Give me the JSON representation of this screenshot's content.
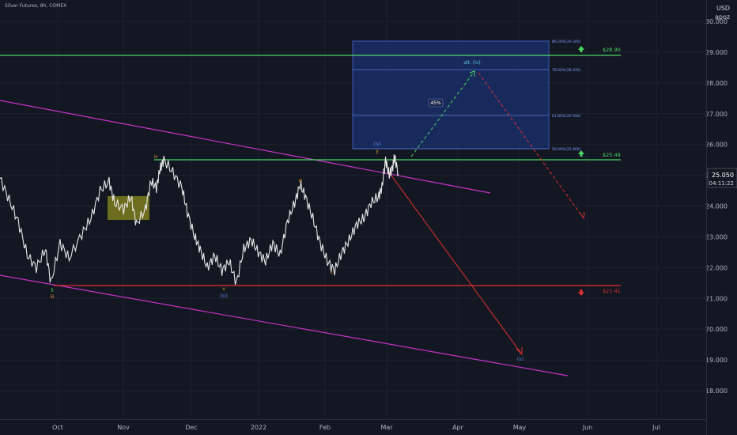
{
  "header": {
    "symbol": "Silver Futures, 8h, COMEX",
    "currency": "USD",
    "author": "apoz"
  },
  "colors": {
    "background": "#131722",
    "green_level": "#4cd964",
    "red_level": "#e0302f",
    "channel": "#c832c8",
    "box_fill": "#1e3a8a",
    "yellow_box": "#8b8b1e",
    "candles": "#e6e6e6",
    "wave_orange": "#e89a2f",
    "wave_blue": "#5a86e6",
    "wave_cyan": "#5ec8e6"
  },
  "chart_data": {
    "type": "line",
    "x_ticks": [
      "Oct",
      "Nov",
      "Dec",
      "2022",
      "Feb",
      "Mar",
      "Apr",
      "May",
      "Jun",
      "Jul"
    ],
    "y_ticks": [
      "18.000",
      "19.000",
      "20.000",
      "21.000",
      "22.000",
      "23.000",
      "24.000",
      "25.000",
      "26.000",
      "27.000",
      "28.000",
      "29.000",
      "30.000"
    ],
    "ylim": [
      17.5,
      30.3
    ],
    "last_price": "25.050",
    "countdown": "04:11:22",
    "levels": [
      {
        "label": "$28.90",
        "value": 28.9,
        "role": "resistance"
      },
      {
        "label": "$25.49",
        "value": 25.49,
        "role": "resistance"
      },
      {
        "label": "$21.41",
        "value": 21.41,
        "role": "support"
      }
    ],
    "fib_labels": [
      "86.20%(29.340)",
      "78.60%(28.435)",
      "61.80%(26.930)",
      "50.00%(25.860)"
    ],
    "target_box_label": "45%",
    "wave_labels": [
      "5",
      "iii",
      "iv",
      "v",
      "(iii)",
      "w",
      "x",
      "y",
      "(iv)",
      "alt. (iv)",
      "(v)"
    ],
    "price_path": [
      [
        0,
        24.9
      ],
      [
        0.05,
        24.2
      ],
      [
        0.1,
        23.5
      ],
      [
        0.15,
        22.4
      ],
      [
        0.2,
        22.0
      ],
      [
        0.25,
        22.6
      ],
      [
        0.28,
        21.5
      ],
      [
        0.33,
        22.8
      ],
      [
        0.38,
        22.3
      ],
      [
        0.45,
        23.1
      ],
      [
        0.5,
        23.6
      ],
      [
        0.55,
        24.5
      ],
      [
        0.6,
        24.8
      ],
      [
        0.63,
        24.1
      ],
      [
        0.68,
        23.9
      ],
      [
        0.72,
        24.3
      ],
      [
        0.75,
        23.4
      ],
      [
        0.8,
        23.9
      ],
      [
        0.83,
        24.8
      ],
      [
        0.86,
        24.6
      ],
      [
        0.88,
        25.2
      ],
      [
        0.9,
        25.5
      ],
      [
        0.95,
        25.1
      ],
      [
        1.0,
        24.6
      ],
      [
        1.03,
        23.8
      ],
      [
        1.07,
        23.0
      ],
      [
        1.1,
        22.6
      ],
      [
        1.14,
        22.0
      ],
      [
        1.18,
        22.4
      ],
      [
        1.22,
        21.9
      ],
      [
        1.26,
        22.2
      ],
      [
        1.3,
        21.5
      ],
      [
        1.34,
        22.6
      ],
      [
        1.38,
        22.9
      ],
      [
        1.42,
        22.5
      ],
      [
        1.46,
        22.2
      ],
      [
        1.5,
        22.8
      ],
      [
        1.54,
        22.4
      ],
      [
        1.58,
        23.5
      ],
      [
        1.62,
        24.1
      ],
      [
        1.65,
        24.7
      ],
      [
        1.68,
        24.3
      ],
      [
        1.72,
        23.6
      ],
      [
        1.76,
        22.8
      ],
      [
        1.8,
        22.2
      ],
      [
        1.84,
        21.9
      ],
      [
        1.88,
        22.5
      ],
      [
        1.92,
        22.9
      ],
      [
        1.96,
        23.4
      ],
      [
        2.0,
        23.6
      ],
      [
        2.04,
        24.1
      ],
      [
        2.08,
        24.3
      ],
      [
        2.1,
        24.6
      ],
      [
        2.12,
        25.5
      ],
      [
        2.14,
        25.0
      ],
      [
        2.16,
        25.3
      ],
      [
        2.17,
        25.6
      ],
      [
        2.19,
        25.05
      ]
    ]
  }
}
